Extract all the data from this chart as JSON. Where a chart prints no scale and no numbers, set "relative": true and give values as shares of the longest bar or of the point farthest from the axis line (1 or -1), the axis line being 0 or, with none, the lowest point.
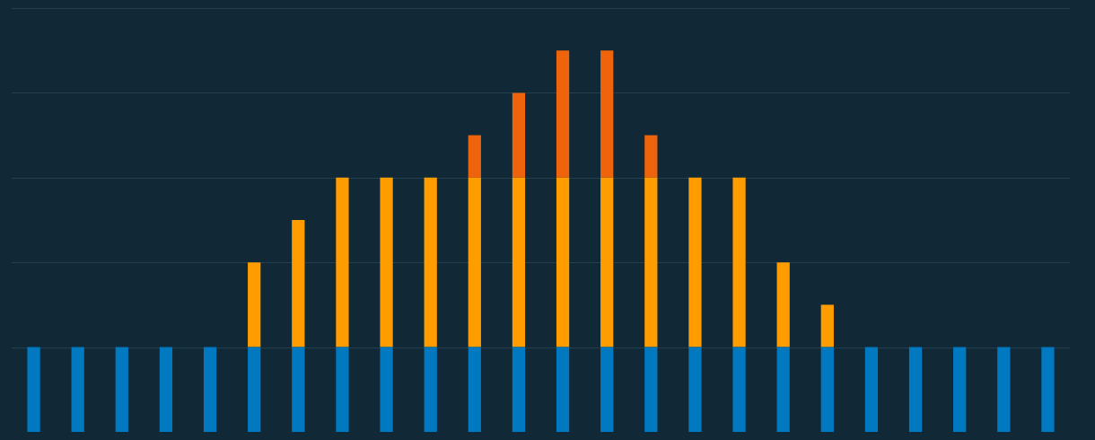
{
  "chart_data": {
    "type": "bar",
    "stacked": true,
    "relative": true,
    "legend": false,
    "categories": [
      null,
      null,
      null,
      null,
      null,
      null,
      null,
      null,
      null,
      null,
      null,
      null,
      null,
      null,
      null,
      null,
      null,
      null,
      null,
      null,
      null,
      null,
      null,
      null
    ],
    "series": [
      {
        "color": "#0079c1",
        "values": [
          0.2222,
          0.2222,
          0.2222,
          0.2222,
          0.2222,
          0.2222,
          0.2222,
          0.2222,
          0.2222,
          0.2222,
          0.2222,
          0.2222,
          0.2222,
          0.2222,
          0.2222,
          0.2222,
          0.2222,
          0.2222,
          0.2222,
          0.2222,
          0.2222,
          0.2222,
          0.2222,
          0.2222
        ]
      },
      {
        "color": "#ff9c00",
        "values": [
          0,
          0,
          0,
          0,
          0,
          0.2222,
          0.3333,
          0.4445,
          0.4445,
          0.4445,
          0.4445,
          0.4445,
          0.4445,
          0.4445,
          0.4445,
          0.4445,
          0.4445,
          0.2222,
          0.1111,
          0,
          0,
          0,
          0,
          0
        ]
      },
      {
        "color": "#ee640c",
        "values": [
          0,
          0,
          0,
          0,
          0,
          0,
          0,
          0,
          0,
          0,
          0.1111,
          0.2222,
          0.3333,
          0.3333,
          0.1111,
          0,
          0,
          0,
          0,
          0,
          0,
          0,
          0,
          0
        ]
      }
    ],
    "ref_lines": [
      {
        "axis": "y",
        "value": 0.2222,
        "color": "#24404f"
      },
      {
        "axis": "y",
        "value": 0.4444,
        "color": "#24404f"
      },
      {
        "axis": "y",
        "value": 0.6667,
        "color": "#24404f"
      },
      {
        "axis": "y",
        "value": 0.8889,
        "color": "#24404f"
      },
      {
        "axis": "y",
        "value": 1.1111,
        "color": "#24404f"
      }
    ]
  }
}
